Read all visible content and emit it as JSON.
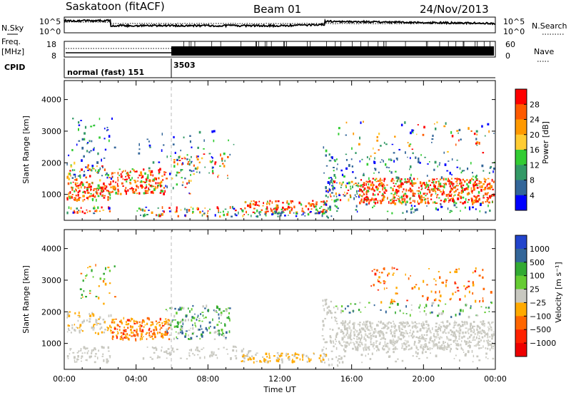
{
  "header": {
    "title_left": "Saskatoon (fitACF)",
    "title_center": "Beam 01",
    "title_right": "24/Nov/2013"
  },
  "status_panels": {
    "noise": {
      "left_label": "N.Sky",
      "right_label": "N.Search",
      "left_ticks": [
        "10^5",
        "10^0"
      ],
      "right_ticks": [
        "10^5",
        "10^0"
      ]
    },
    "freq": {
      "left_label_1": "Freq.",
      "left_label_2": "[MHz]",
      "left_ticks": [
        "18",
        "8"
      ],
      "right_label": "Nave",
      "right_ticks": [
        "60",
        "0"
      ]
    },
    "cpid": {
      "label": "CPID",
      "segments": [
        {
          "name": "normal (fast) 151",
          "start_hour": 0
        },
        {
          "name": "3503",
          "start_hour": 6
        }
      ]
    }
  },
  "chart_data": [
    {
      "type": "heatmap",
      "title": "",
      "ylabel": "Slant Range [km]",
      "xlim": [
        0,
        24
      ],
      "ylim": [
        180,
        4600
      ],
      "y_ticks": [
        "1000",
        "2000",
        "3000",
        "4000"
      ],
      "y_tick_values": [
        1000,
        2000,
        3000,
        4000
      ],
      "colorbar": {
        "label": "Power [dB]",
        "ticks": [
          "28",
          "24",
          "20",
          "16",
          "12",
          "8",
          "4"
        ],
        "tick_values": [
          28,
          24,
          20,
          16,
          12,
          8,
          4
        ],
        "colors": [
          "#ff0000",
          "#ff5a00",
          "#ff9900",
          "#ffcc33",
          "#33cc33",
          "#339966",
          "#336699",
          "#0000ff"
        ]
      }
    },
    {
      "type": "heatmap",
      "title": "",
      "ylabel": "Slant Range [km]",
      "xlabel": "Time UT",
      "xlim": [
        0,
        24
      ],
      "ylim": [
        180,
        4600
      ],
      "y_ticks": [
        "1000",
        "2000",
        "3000",
        "4000"
      ],
      "y_tick_values": [
        1000,
        2000,
        3000,
        4000
      ],
      "x_ticks": [
        "00:00",
        "04:00",
        "08:00",
        "12:00",
        "16:00",
        "20:00",
        "00:00"
      ],
      "x_tick_values": [
        0,
        4,
        8,
        12,
        16,
        20,
        24
      ],
      "colorbar": {
        "label": "Velocity [m s⁻¹]",
        "ticks": [
          "1000",
          "500",
          "100",
          "25",
          "−25",
          "−100",
          "−500",
          "−1000"
        ],
        "tick_values": [
          1000,
          500,
          100,
          25,
          -25,
          -100,
          -500,
          -1000
        ],
        "colors": [
          "#2244cc",
          "#336699",
          "#33aa33",
          "#66cc33",
          "#c8c8c0",
          "#ffaa00",
          "#ff6600",
          "#ff2200",
          "#ee0000"
        ]
      }
    }
  ],
  "palette": {
    "axis": "#000000",
    "dashed_marker": "#bbbbbb",
    "scatter_grey": "#c8c8c0"
  }
}
